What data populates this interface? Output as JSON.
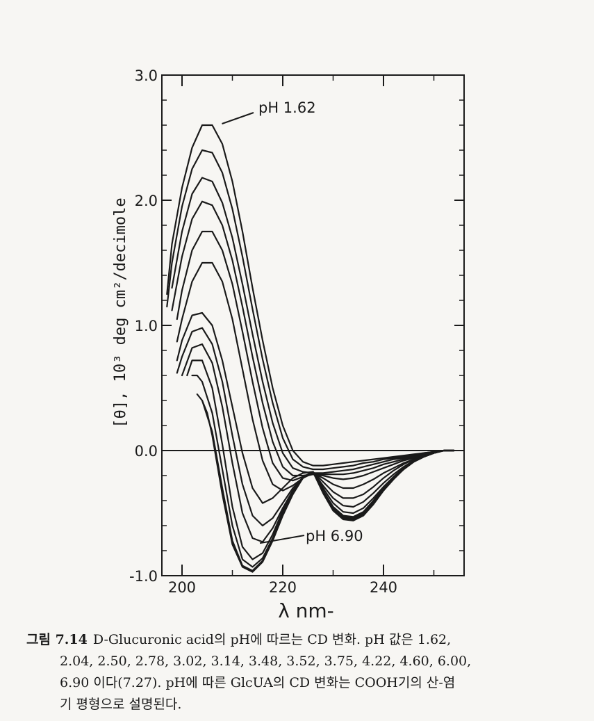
{
  "chart_data": {
    "type": "line",
    "xlabel": "λ nm-",
    "ylabel": "[θ], 10³ deg cm²/decimole",
    "xlim": [
      196,
      256
    ],
    "ylim": [
      -1.0,
      3.0
    ],
    "x_ticks": [
      200,
      220,
      240
    ],
    "y_ticks": [
      -1.0,
      0.0,
      1.0,
      2.0,
      3.0
    ],
    "x_tick_labels": [
      "200",
      "220",
      "240"
    ],
    "y_tick_labels": [
      "-1.0",
      "0.0",
      "1.0",
      "2.0",
      "3.0"
    ],
    "zero_line": true,
    "grid": false,
    "annotations": [
      {
        "text": "pH   1.62",
        "anchor": {
          "x": 206,
          "y": 2.6
        }
      },
      {
        "text": "pH 6.90",
        "anchor": {
          "x": 216,
          "y": -0.74
        }
      }
    ],
    "series": [
      {
        "x": [
          197,
          198,
          200,
          202,
          204,
          206,
          208,
          210,
          212,
          214,
          216,
          218,
          220,
          222,
          224,
          226,
          228,
          230,
          232,
          234,
          236,
          238,
          240,
          242,
          244,
          246,
          248,
          250,
          252,
          254
        ],
        "y": [
          1.25,
          1.65,
          2.1,
          2.42,
          2.6,
          2.6,
          2.45,
          2.15,
          1.75,
          1.3,
          0.88,
          0.5,
          0.2,
          0.0,
          -0.09,
          -0.12,
          -0.12,
          -0.11,
          -0.1,
          -0.09,
          -0.08,
          -0.07,
          -0.06,
          -0.05,
          -0.04,
          -0.03,
          -0.02,
          -0.01,
          0.0,
          0.0
        ]
      },
      {
        "x": [
          197,
          198,
          200,
          202,
          204,
          206,
          208,
          210,
          212,
          214,
          216,
          218,
          220,
          222,
          224,
          226,
          228,
          230,
          232,
          234,
          236,
          238,
          240,
          242,
          244,
          246,
          248,
          250,
          252,
          254
        ],
        "y": [
          1.15,
          1.5,
          1.95,
          2.25,
          2.4,
          2.38,
          2.22,
          1.93,
          1.55,
          1.13,
          0.73,
          0.38,
          0.1,
          -0.07,
          -0.13,
          -0.15,
          -0.15,
          -0.14,
          -0.13,
          -0.12,
          -0.1,
          -0.09,
          -0.07,
          -0.06,
          -0.05,
          -0.04,
          -0.02,
          -0.01,
          0.0,
          0.0
        ]
      },
      {
        "x": [
          198,
          200,
          202,
          204,
          206,
          208,
          210,
          212,
          214,
          216,
          218,
          220,
          222,
          224,
          226,
          228,
          230,
          232,
          234,
          236,
          238,
          240,
          242,
          244,
          246,
          248,
          250,
          252,
          254
        ],
        "y": [
          1.3,
          1.75,
          2.05,
          2.18,
          2.15,
          1.98,
          1.7,
          1.33,
          0.93,
          0.55,
          0.22,
          -0.02,
          -0.14,
          -0.17,
          -0.18,
          -0.18,
          -0.17,
          -0.16,
          -0.15,
          -0.13,
          -0.11,
          -0.09,
          -0.07,
          -0.06,
          -0.04,
          -0.03,
          -0.01,
          0.0,
          0.0
        ]
      },
      {
        "x": [
          198,
          200,
          202,
          204,
          206,
          208,
          210,
          212,
          214,
          216,
          218,
          220,
          222,
          224,
          226,
          228,
          230,
          232,
          234,
          236,
          238,
          240,
          242,
          244,
          246,
          248,
          250,
          252,
          254
        ],
        "y": [
          1.12,
          1.55,
          1.85,
          1.99,
          1.96,
          1.8,
          1.52,
          1.15,
          0.75,
          0.38,
          0.07,
          -0.13,
          -0.2,
          -0.2,
          -0.19,
          -0.19,
          -0.19,
          -0.19,
          -0.18,
          -0.16,
          -0.14,
          -0.11,
          -0.09,
          -0.07,
          -0.05,
          -0.03,
          -0.01,
          0.0,
          0.0
        ]
      },
      {
        "x": [
          199,
          200,
          202,
          204,
          206,
          208,
          210,
          212,
          214,
          216,
          218,
          220,
          222,
          224,
          226,
          228,
          230,
          232,
          234,
          236,
          238,
          240,
          242,
          244,
          246,
          248,
          250,
          252,
          254
        ],
        "y": [
          1.05,
          1.28,
          1.6,
          1.75,
          1.75,
          1.6,
          1.33,
          0.95,
          0.55,
          0.18,
          -0.1,
          -0.22,
          -0.24,
          -0.21,
          -0.19,
          -0.2,
          -0.22,
          -0.23,
          -0.22,
          -0.2,
          -0.17,
          -0.14,
          -0.11,
          -0.08,
          -0.06,
          -0.04,
          -0.02,
          0.0,
          0.0
        ]
      },
      {
        "x": [
          199,
          200,
          202,
          204,
          206,
          208,
          210,
          212,
          214,
          216,
          218,
          220,
          222,
          224,
          226,
          228,
          230,
          232,
          234,
          236,
          238,
          240,
          242,
          244,
          246,
          248,
          250,
          252,
          254
        ],
        "y": [
          0.87,
          1.05,
          1.35,
          1.5,
          1.5,
          1.35,
          1.05,
          0.65,
          0.25,
          -0.08,
          -0.27,
          -0.32,
          -0.28,
          -0.22,
          -0.18,
          -0.22,
          -0.27,
          -0.3,
          -0.3,
          -0.27,
          -0.23,
          -0.18,
          -0.14,
          -0.1,
          -0.07,
          -0.04,
          -0.02,
          0.0,
          0.0
        ]
      },
      {
        "x": [
          199,
          200,
          202,
          204,
          206,
          208,
          210,
          212,
          214,
          216,
          218,
          220,
          222,
          224,
          226,
          228,
          230,
          232,
          234,
          236,
          238,
          240,
          242,
          244,
          246,
          248,
          250,
          252,
          254
        ],
        "y": [
          0.72,
          0.88,
          1.08,
          1.1,
          1.0,
          0.72,
          0.35,
          -0.02,
          -0.3,
          -0.42,
          -0.38,
          -0.3,
          -0.22,
          -0.18,
          -0.17,
          -0.25,
          -0.33,
          -0.38,
          -0.38,
          -0.35,
          -0.29,
          -0.22,
          -0.16,
          -0.11,
          -0.07,
          -0.04,
          -0.02,
          0.0,
          0.0
        ]
      },
      {
        "x": [
          199,
          200,
          202,
          204,
          206,
          208,
          210,
          212,
          214,
          216,
          218,
          220,
          222,
          224,
          226,
          228,
          230,
          232,
          234,
          236,
          238,
          240,
          242,
          244,
          246,
          248,
          250,
          252,
          254
        ],
        "y": [
          0.62,
          0.75,
          0.95,
          0.98,
          0.85,
          0.55,
          0.12,
          -0.27,
          -0.52,
          -0.6,
          -0.54,
          -0.42,
          -0.3,
          -0.22,
          -0.17,
          -0.28,
          -0.38,
          -0.44,
          -0.45,
          -0.41,
          -0.34,
          -0.26,
          -0.19,
          -0.13,
          -0.08,
          -0.05,
          -0.02,
          0.0,
          0.0
        ]
      },
      {
        "x": [
          200,
          202,
          204,
          206,
          208,
          210,
          212,
          214,
          216,
          218,
          220,
          222,
          224,
          226,
          228,
          230,
          232,
          234,
          236,
          238,
          240,
          242,
          244,
          246,
          248,
          250,
          252,
          254
        ],
        "y": [
          0.6,
          0.82,
          0.85,
          0.7,
          0.35,
          -0.1,
          -0.5,
          -0.7,
          -0.73,
          -0.62,
          -0.46,
          -0.32,
          -0.22,
          -0.17,
          -0.3,
          -0.42,
          -0.49,
          -0.5,
          -0.46,
          -0.38,
          -0.29,
          -0.21,
          -0.14,
          -0.09,
          -0.05,
          -0.02,
          0.0,
          0.0
        ]
      },
      {
        "x": [
          201,
          202,
          204,
          206,
          208,
          210,
          212,
          214,
          216,
          218,
          220,
          222,
          224,
          226,
          228,
          230,
          232,
          234,
          236,
          238,
          240,
          242,
          244,
          246,
          248,
          250,
          252,
          254
        ],
        "y": [
          0.6,
          0.72,
          0.72,
          0.5,
          0.05,
          -0.45,
          -0.77,
          -0.87,
          -0.82,
          -0.67,
          -0.48,
          -0.32,
          -0.21,
          -0.17,
          -0.32,
          -0.45,
          -0.52,
          -0.53,
          -0.49,
          -0.4,
          -0.3,
          -0.21,
          -0.14,
          -0.09,
          -0.05,
          -0.02,
          0.0,
          0.0
        ]
      },
      {
        "x": [
          202,
          203,
          204,
          206,
          208,
          210,
          212,
          214,
          216,
          218,
          220,
          222,
          224,
          226,
          228,
          230,
          232,
          234,
          236,
          238,
          240,
          242,
          244,
          246,
          248,
          250,
          252,
          254
        ],
        "y": [
          0.6,
          0.6,
          0.55,
          0.3,
          -0.15,
          -0.6,
          -0.87,
          -0.93,
          -0.86,
          -0.7,
          -0.5,
          -0.33,
          -0.22,
          -0.17,
          -0.33,
          -0.46,
          -0.53,
          -0.54,
          -0.5,
          -0.41,
          -0.31,
          -0.22,
          -0.15,
          -0.09,
          -0.05,
          -0.02,
          0.0,
          0.0
        ]
      },
      {
        "x": [
          203,
          204,
          206,
          208,
          210,
          212,
          214,
          216,
          218,
          220,
          222,
          224,
          226,
          228,
          230,
          232,
          234,
          236,
          238,
          240,
          242,
          244,
          246,
          248,
          250,
          252,
          254
        ],
        "y": [
          0.45,
          0.4,
          0.15,
          -0.3,
          -0.72,
          -0.92,
          -0.96,
          -0.88,
          -0.72,
          -0.51,
          -0.34,
          -0.22,
          -0.17,
          -0.33,
          -0.47,
          -0.54,
          -0.55,
          -0.51,
          -0.42,
          -0.32,
          -0.22,
          -0.15,
          -0.09,
          -0.05,
          -0.02,
          0.0,
          0.0
        ]
      },
      {
        "x": [
          204,
          205,
          206,
          208,
          210,
          212,
          214,
          216,
          218,
          220,
          222,
          224,
          226,
          228,
          230,
          232,
          234,
          236,
          238,
          240,
          242,
          244,
          246,
          248,
          250,
          252,
          254
        ],
        "y": [
          0.4,
          0.3,
          0.12,
          -0.35,
          -0.75,
          -0.93,
          -0.97,
          -0.89,
          -0.72,
          -0.52,
          -0.35,
          -0.22,
          -0.17,
          -0.34,
          -0.48,
          -0.55,
          -0.56,
          -0.52,
          -0.43,
          -0.32,
          -0.23,
          -0.15,
          -0.09,
          -0.05,
          -0.02,
          0.0,
          0.0
        ]
      }
    ]
  },
  "caption": {
    "label": "그림 7.14",
    "line1": "D-Glucuronic acid의 pH에 따르는 CD 변화. pH 값은 1.62,",
    "line2": "2.04, 2.50, 2.78, 3.02, 3.14, 3.48, 3.52, 3.75, 4.22, 4.60, 6.00,",
    "line3": "6.90 이다(7.27). pH에 따른 GlcUA의 CD 변화는 COOH기의 산-염",
    "line4": "기 평형으로 설명된다."
  },
  "colors": {
    "ink": "#1a1a1a",
    "paper": "#f7f6f3"
  }
}
